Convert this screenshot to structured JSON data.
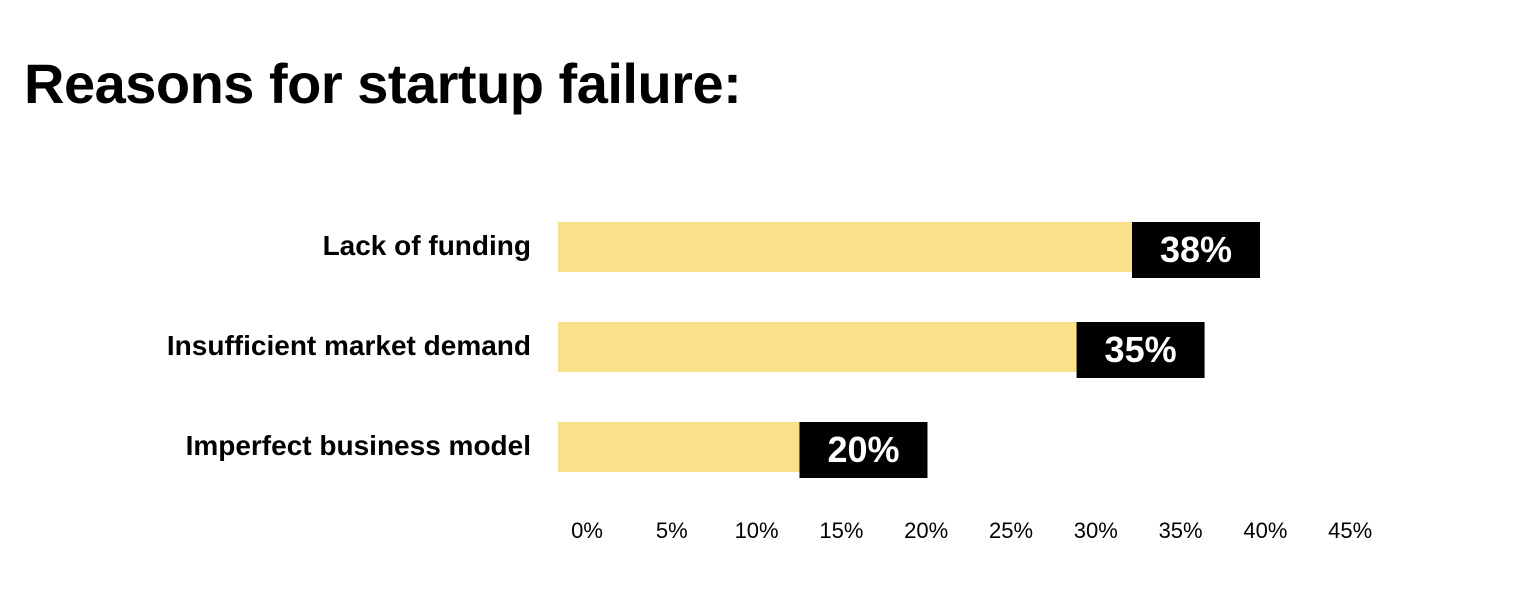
{
  "title": {
    "prefix": "Reasons for ",
    "highlight": "startup failure:"
  },
  "colors": {
    "bar": "#fae088",
    "label_box": "#000000",
    "label_text": "#ffffff",
    "title_highlight": "#e6e6ea"
  },
  "chart_data": {
    "type": "bar",
    "orientation": "horizontal",
    "categories": [
      "Lack of funding",
      "Insufficient market demand",
      "Imperfect business model"
    ],
    "values": [
      38,
      35,
      20
    ],
    "data_labels": [
      "38%",
      "35%",
      "20%"
    ],
    "xlim": [
      0,
      45
    ],
    "x_ticks": [
      "0%",
      "5%",
      "10%",
      "15%",
      "20%",
      "25%",
      "30%",
      "35%",
      "40%",
      "45%"
    ],
    "grid": false,
    "legend": "none"
  }
}
